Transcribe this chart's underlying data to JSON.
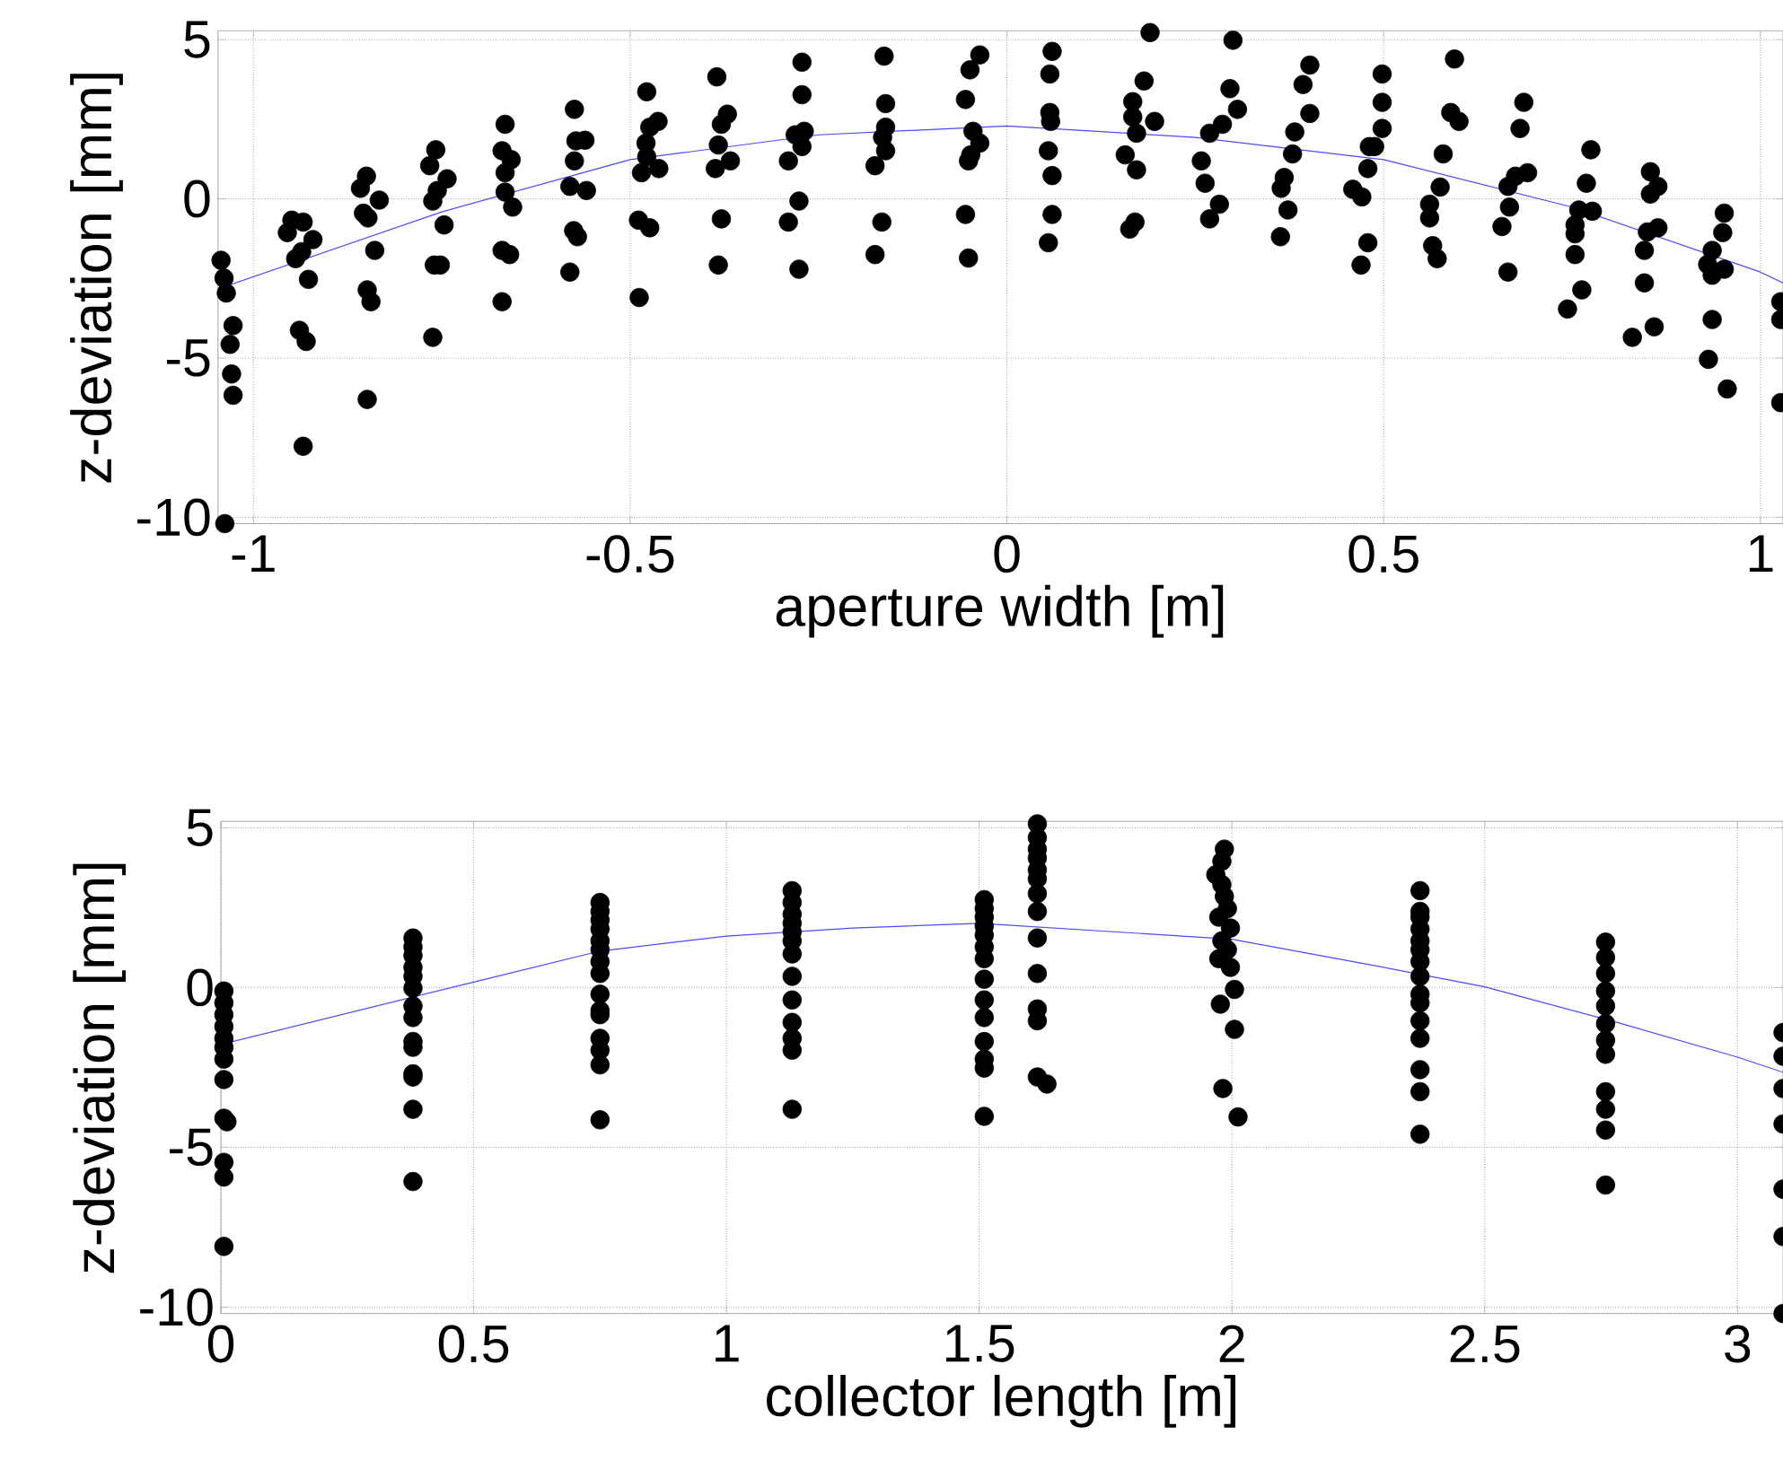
{
  "chart_data": [
    {
      "type": "scatter",
      "xlabel": "aperture width [m]",
      "ylabel": "z-deviation [mm]",
      "xlim": [
        -1.047,
        1.03
      ],
      "ylim": [
        -10.2,
        5.28
      ],
      "xticks": [
        -1,
        -0.5,
        0,
        0.5,
        1
      ],
      "yticks": [
        -10,
        -5,
        0,
        5
      ],
      "grid": true,
      "series": [
        {
          "color": "#000000",
          "marker": "circle",
          "x": [
            -1.043,
            -1.039,
            -1.036,
            -1.027,
            -1.031,
            -1.029,
            -1.027,
            -1.038,
            -0.949,
            -0.934,
            -0.955,
            -0.921,
            -0.936,
            -0.944,
            -0.927,
            -0.939,
            -0.93,
            -0.934,
            -0.85,
            -0.858,
            -0.833,
            -0.854,
            -0.848,
            -0.839,
            -0.849,
            -0.844,
            -0.849,
            -0.758,
            -0.766,
            -0.743,
            -0.756,
            -0.762,
            -0.747,
            -0.76,
            -0.752,
            -0.762,
            -0.666,
            -0.67,
            -0.658,
            -0.666,
            -0.666,
            -0.656,
            -0.67,
            -0.66,
            -0.67,
            -0.574,
            -0.572,
            -0.56,
            -0.574,
            -0.58,
            -0.558,
            -0.575,
            -0.57,
            -0.58,
            -0.478,
            -0.463,
            -0.474,
            -0.479,
            -0.478,
            -0.462,
            -0.485,
            -0.489,
            -0.474,
            -0.488,
            -0.385,
            -0.371,
            -0.379,
            -0.383,
            -0.367,
            -0.387,
            -0.379,
            -0.383,
            -0.272,
            -0.272,
            -0.281,
            -0.269,
            -0.272,
            -0.29,
            -0.276,
            -0.29,
            -0.276,
            -0.163,
            -0.161,
            -0.161,
            -0.165,
            -0.161,
            -0.175,
            -0.166,
            -0.175,
            -0.036,
            -0.049,
            -0.055,
            -0.045,
            -0.036,
            -0.048,
            -0.051,
            -0.055,
            -0.051,
            0.06,
            0.057,
            0.057,
            0.058,
            0.055,
            0.06,
            0.06,
            0.055,
            0.19,
            0.182,
            0.167,
            0.167,
            0.196,
            0.172,
            0.157,
            0.172,
            0.17,
            0.163,
            0.3,
            0.296,
            0.306,
            0.269,
            0.286,
            0.258,
            0.263,
            0.282,
            0.269,
            0.402,
            0.393,
            0.402,
            0.382,
            0.379,
            0.368,
            0.364,
            0.373,
            0.363,
            0.498,
            0.498,
            0.498,
            0.481,
            0.488,
            0.479,
            0.459,
            0.471,
            0.479,
            0.47,
            0.594,
            0.589,
            0.6,
            0.579,
            0.575,
            0.561,
            0.561,
            0.565,
            0.571,
            0.686,
            0.681,
            0.691,
            0.675,
            0.665,
            0.667,
            0.657,
            0.665,
            0.775,
            0.769,
            0.759,
            0.777,
            0.754,
            0.754,
            0.754,
            0.763,
            0.744,
            0.854,
            0.864,
            0.854,
            0.864,
            0.85,
            0.846,
            0.846,
            0.859,
            0.83,
            0.952,
            0.95,
            0.936,
            0.93,
            0.952,
            0.936,
            0.936,
            0.931,
            0.956,
            1.027,
            1.027,
            1.027
          ],
          "values": [
            -1.93,
            -2.49,
            -2.96,
            -3.98,
            -4.57,
            -5.5,
            -6.17,
            -10.2,
            -0.67,
            -0.73,
            -1.06,
            -1.28,
            -1.66,
            -1.88,
            -2.53,
            -4.13,
            -4.48,
            -7.77,
            0.71,
            0.33,
            -0.04,
            -0.45,
            -0.6,
            -1.62,
            -2.86,
            -3.23,
            -6.3,
            1.54,
            1.04,
            0.63,
            0.26,
            -0.07,
            -0.82,
            -2.08,
            -2.08,
            -4.35,
            2.34,
            1.51,
            1.23,
            0.82,
            0.21,
            -0.26,
            -1.62,
            -1.75,
            -3.23,
            2.81,
            1.82,
            1.84,
            1.19,
            0.39,
            0.26,
            -1.0,
            -1.19,
            -2.3,
            3.36,
            2.43,
            2.25,
            1.75,
            1.32,
            0.95,
            0.82,
            -0.67,
            -0.91,
            -3.1,
            3.83,
            2.66,
            2.34,
            1.69,
            1.19,
            0.95,
            -0.63,
            -2.08,
            4.29,
            3.27,
            2.01,
            2.12,
            1.64,
            1.19,
            -0.07,
            -0.73,
            -2.21,
            4.48,
            2.99,
            2.25,
            1.93,
            1.51,
            1.04,
            -0.73,
            -1.75,
            4.52,
            4.05,
            3.12,
            2.12,
            1.75,
            1.38,
            1.19,
            -0.49,
            -1.86,
            4.63,
            3.92,
            2.71,
            2.43,
            1.51,
            0.73,
            -0.49,
            -1.38,
            5.22,
            3.7,
            3.05,
            2.57,
            2.43,
            2.06,
            1.38,
            0.91,
            -0.73,
            -0.95,
            4.98,
            3.46,
            2.81,
            2.06,
            2.34,
            1.19,
            0.49,
            -0.17,
            -0.63,
            4.2,
            3.59,
            2.68,
            2.1,
            1.41,
            0.67,
            0.33,
            -0.35,
            -1.19,
            3.92,
            3.03,
            2.21,
            1.64,
            1.64,
            0.95,
            0.3,
            0.06,
            -1.38,
            -2.08,
            4.39,
            2.71,
            2.43,
            1.41,
            0.37,
            -0.17,
            -0.6,
            -1.47,
            -1.88,
            3.03,
            2.21,
            0.82,
            0.71,
            0.39,
            -0.26,
            -0.87,
            -2.3,
            1.54,
            0.49,
            -0.35,
            -0.39,
            -0.82,
            -1.1,
            -1.75,
            -2.86,
            -3.46,
            0.85,
            0.39,
            0.15,
            -0.91,
            -1.04,
            -1.62,
            -2.64,
            -4.02,
            -4.35,
            -0.45,
            -1.06,
            -1.62,
            -2.06,
            -2.21,
            -2.4,
            -3.79,
            -5.04,
            -5.97,
            -3.23,
            -3.79,
            -6.4
          ]
        },
        {
          "type": "line",
          "color": "#4a4aff",
          "x": [
            -1.04,
            -0.75,
            -0.5,
            -0.25,
            0,
            0.25,
            0.5,
            0.75,
            1,
            1.03
          ],
          "values": [
            -2.77,
            -0.41,
            1.23,
            2.01,
            2.29,
            1.93,
            1.23,
            -0.26,
            -2.3,
            -2.64
          ]
        }
      ]
    },
    {
      "type": "scatter",
      "xlabel": "collector length [m]",
      "ylabel": "z-deviation [mm]",
      "xlim": [
        0,
        3.09
      ],
      "ylim": [
        -10.2,
        5.2
      ],
      "xticks": [
        0,
        0.5,
        1,
        1.5,
        2,
        2.5,
        3
      ],
      "yticks": [
        -10,
        -5,
        0,
        5
      ],
      "grid": true,
      "series": [
        {
          "color": "#000000",
          "marker": "circle",
          "x": [
            0.006,
            0.006,
            0.006,
            0.006,
            0.006,
            0.006,
            0.006,
            0.006,
            0.006,
            0.012,
            0.006,
            0.006,
            0.006,
            0.38,
            0.38,
            0.38,
            0.38,
            0.38,
            0.38,
            0.38,
            0.38,
            0.38,
            0.38,
            0.38,
            0.38,
            0.38,
            0.38,
            0.75,
            0.75,
            0.75,
            0.75,
            0.75,
            0.75,
            0.75,
            0.75,
            0.75,
            0.75,
            0.75,
            0.75,
            0.75,
            0.75,
            0.75,
            1.13,
            1.13,
            1.13,
            1.13,
            1.13,
            1.13,
            1.13,
            1.13,
            1.13,
            1.13,
            1.13,
            1.13,
            1.13,
            1.51,
            1.51,
            1.51,
            1.51,
            1.51,
            1.51,
            1.51,
            1.51,
            1.51,
            1.51,
            1.51,
            1.51,
            1.51,
            1.51,
            1.615,
            1.615,
            1.615,
            1.615,
            1.615,
            1.615,
            1.615,
            1.615,
            1.615,
            1.615,
            1.615,
            1.615,
            1.615,
            1.634,
            1.985,
            1.98,
            1.968,
            1.98,
            1.985,
            1.991,
            1.974,
            1.997,
            1.98,
            1.991,
            1.974,
            1.997,
            2.005,
            1.977,
            2.005,
            1.982,
            2.012,
            2.372,
            2.372,
            2.372,
            2.372,
            2.372,
            2.372,
            2.372,
            2.372,
            2.372,
            2.372,
            2.372,
            2.372,
            2.372,
            2.372,
            2.372,
            2.739,
            2.739,
            2.739,
            2.739,
            2.739,
            2.739,
            2.739,
            2.739,
            2.739,
            2.739,
            2.739,
            2.739,
            3.09,
            3.09,
            3.09,
            3.09,
            3.09,
            3.09,
            3.09
          ],
          "values": [
            -0.11,
            -0.48,
            -0.85,
            -1.22,
            -1.59,
            -1.87,
            -2.24,
            -2.88,
            -4.09,
            -4.2,
            -5.47,
            -5.93,
            -8.1,
            1.55,
            1.27,
            1.0,
            0.63,
            0.35,
            -0.02,
            -0.58,
            -0.94,
            -1.69,
            -1.87,
            -2.7,
            -2.8,
            -3.81,
            -6.07,
            2.66,
            2.38,
            2.11,
            1.83,
            1.46,
            1.18,
            0.81,
            0.44,
            -0.21,
            -0.72,
            -0.85,
            -1.59,
            -1.96,
            -2.42,
            -4.14,
            3.03,
            2.66,
            2.29,
            2.01,
            1.74,
            1.46,
            1.05,
            0.35,
            -0.39,
            -1.09,
            -1.59,
            -1.96,
            -3.81,
            2.75,
            2.47,
            2.2,
            1.92,
            1.64,
            1.27,
            0.9,
            0.26,
            -0.39,
            -0.94,
            -1.69,
            -2.24,
            -2.52,
            -4.03,
            5.12,
            4.69,
            4.33,
            4.05,
            3.68,
            3.4,
            2.94,
            2.38,
            1.55,
            0.44,
            -0.67,
            -1.04,
            -2.8,
            -3.02,
            4.33,
            3.95,
            3.53,
            3.22,
            2.85,
            2.47,
            2.2,
            1.86,
            1.46,
            1.18,
            0.9,
            0.63,
            -0.06,
            -0.52,
            -1.31,
            -3.16,
            -4.05,
            3.03,
            2.38,
            2.2,
            1.83,
            1.46,
            1.18,
            0.81,
            0.35,
            -0.21,
            -0.48,
            -1.04,
            -1.59,
            -2.57,
            -3.26,
            -4.59,
            1.42,
            0.94,
            0.44,
            -0.11,
            -0.58,
            -1.13,
            -1.65,
            -2.09,
            -3.26,
            -3.81,
            -4.46,
            -6.18,
            -1.41,
            -2.15,
            -3.16,
            -4.27,
            -6.31,
            -7.79,
            -10.2
          ]
        },
        {
          "type": "line",
          "color": "#4a4aff",
          "x": [
            0,
            0.5,
            0.75,
            1,
            1.25,
            1.5,
            2,
            2.25,
            2.5,
            2.75,
            3,
            3.09
          ],
          "values": [
            -1.78,
            0.17,
            1.14,
            1.61,
            1.86,
            2.01,
            1.51,
            0.78,
            0.02,
            -1.04,
            -2.18,
            -2.65
          ]
        }
      ]
    }
  ]
}
